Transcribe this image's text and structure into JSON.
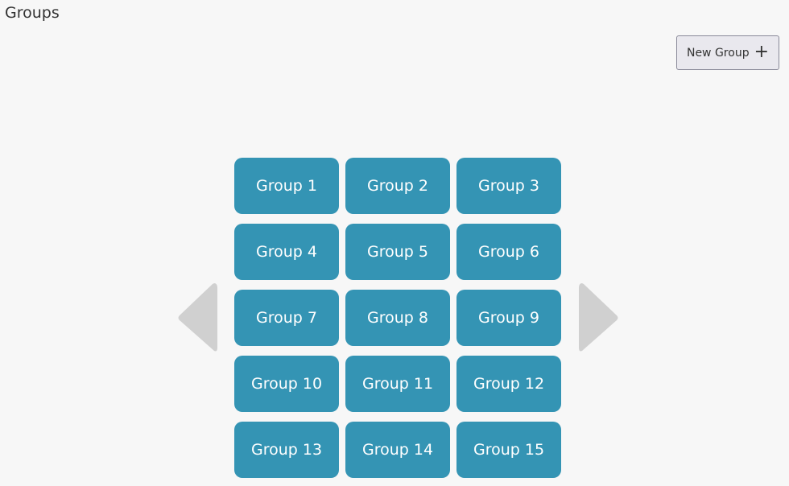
{
  "header": {
    "title": "Groups"
  },
  "toolbar": {
    "new_group_label": "New Group",
    "new_group_icon": "plus-icon",
    "plus_glyph": "+"
  },
  "colors": {
    "tile": "#3494b4",
    "arrow": "#d0d0d0",
    "background": "#f7f7f7"
  },
  "groups": [
    "Group 1",
    "Group 2",
    "Group 3",
    "Group 4",
    "Group 5",
    "Group 6",
    "Group 7",
    "Group 8",
    "Group 9",
    "Group 10",
    "Group 11",
    "Group 12",
    "Group 13",
    "Group 14",
    "Group 15"
  ],
  "navigation": {
    "prev_icon": "triangle-left-icon",
    "next_icon": "triangle-right-icon"
  }
}
